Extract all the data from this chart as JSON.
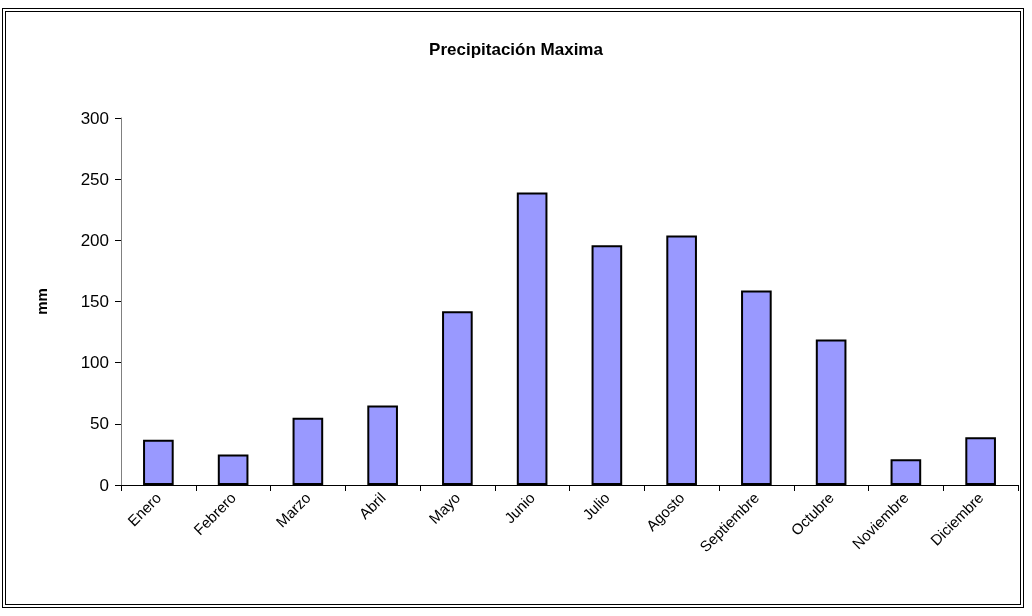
{
  "chart_data": {
    "type": "bar",
    "title": "Precipitación Maxima",
    "ylabel": "mm",
    "categories": [
      "Enero",
      "Febrero",
      "Marzo",
      "Abril",
      "Mayo",
      "Junio",
      "Julio",
      "Agosto",
      "Septiembre",
      "Octubre",
      "Noviembre",
      "Diciembre"
    ],
    "values": [
      37,
      25,
      55,
      65,
      142,
      239,
      196,
      204,
      159,
      119,
      21,
      39
    ],
    "color": "#9999ff",
    "ylim": [
      0,
      300
    ],
    "yticks": [
      0,
      50,
      100,
      150,
      200,
      250,
      300
    ],
    "grid": false
  }
}
